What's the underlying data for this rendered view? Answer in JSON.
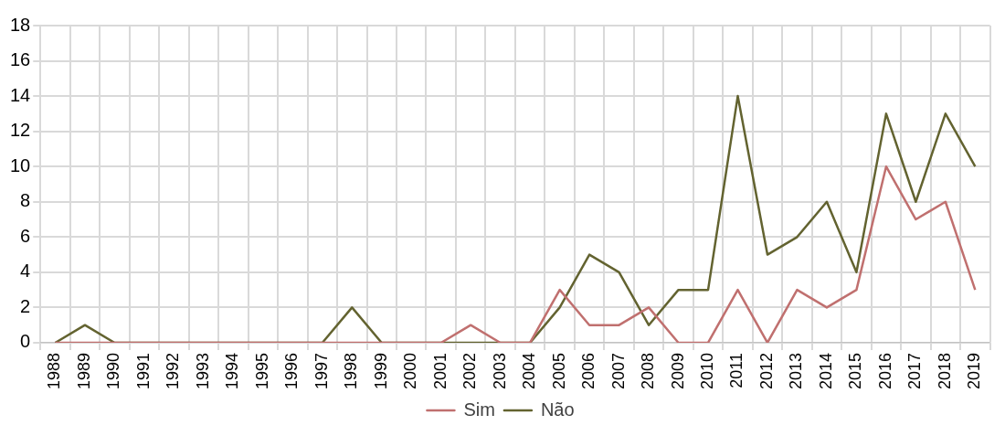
{
  "chart_data": {
    "type": "line",
    "categories": [
      "1988",
      "1989",
      "1990",
      "1991",
      "1992",
      "1993",
      "1994",
      "1995",
      "1996",
      "1997",
      "1998",
      "1999",
      "2000",
      "2001",
      "2002",
      "2003",
      "2004",
      "2005",
      "2006",
      "2007",
      "2008",
      "2009",
      "2010",
      "2011",
      "2012",
      "2013",
      "2014",
      "2015",
      "2016",
      "2017",
      "2018",
      "2019"
    ],
    "series": [
      {
        "name": "Sim",
        "color": "#c0706f",
        "values": [
          0,
          0,
          0,
          0,
          0,
          0,
          0,
          0,
          0,
          0,
          0,
          0,
          0,
          0,
          1,
          0,
          0,
          3,
          1,
          1,
          2,
          0,
          0,
          3,
          0,
          3,
          2,
          3,
          10,
          7,
          8,
          3
        ]
      },
      {
        "name": "Não",
        "color": "#636330",
        "values": [
          0,
          1,
          0,
          0,
          0,
          0,
          0,
          0,
          0,
          0,
          2,
          0,
          0,
          0,
          0,
          0,
          0,
          2,
          5,
          4,
          1,
          3,
          3,
          14,
          5,
          6,
          8,
          4,
          13,
          8,
          13,
          10
        ]
      }
    ],
    "ylim": [
      0,
      18
    ],
    "yticks": [
      0,
      2,
      4,
      6,
      8,
      10,
      12,
      14,
      16,
      18
    ],
    "grid": true,
    "legend": "bottom",
    "marker": "none",
    "line_style": "solid"
  }
}
